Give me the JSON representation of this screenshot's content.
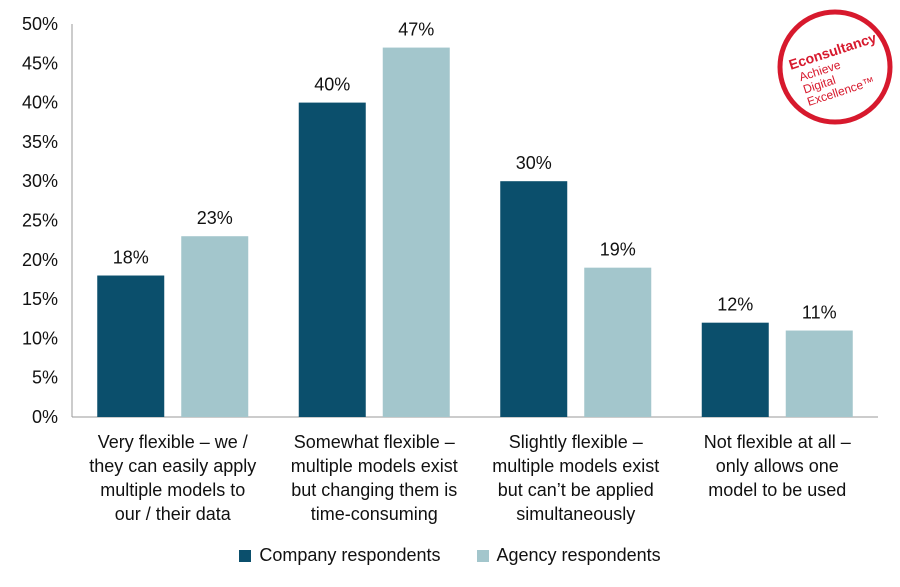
{
  "chart_data": {
    "type": "bar",
    "categories": [
      "Very flexible – we /\nthey can easily apply\nmultiple  models to\nour / their data",
      "Somewhat flexible –\nmultiple  models exist\nbut changing them is\ntime-consuming",
      "Slightly flexible –\nmultiple  models exist\nbut can’t be applied\nsimultaneously",
      "Not flexible at all –\nonly allows one\nmodel to be used"
    ],
    "series": [
      {
        "name": "Company respondents",
        "color": "#0b4f6c",
        "values": [
          18,
          40,
          30,
          12
        ]
      },
      {
        "name": "Agency respondents",
        "color": "#a3c6cc",
        "values": [
          23,
          47,
          19,
          11
        ]
      }
    ],
    "value_suffix": "%",
    "ylim": [
      0,
      50
    ],
    "yticks": [
      "0%",
      "5%",
      "10%",
      "15%",
      "20%",
      "25%",
      "30%",
      "35%",
      "40%",
      "45%",
      "50%"
    ],
    "legend_position": "bottom",
    "title": "",
    "xlabel": "",
    "ylabel": ""
  },
  "logo": {
    "brand": "Econsultancy",
    "tagline_1": "Achieve",
    "tagline_2": "Digital",
    "tagline_3": "Excellence™",
    "color": "#d7192d"
  }
}
